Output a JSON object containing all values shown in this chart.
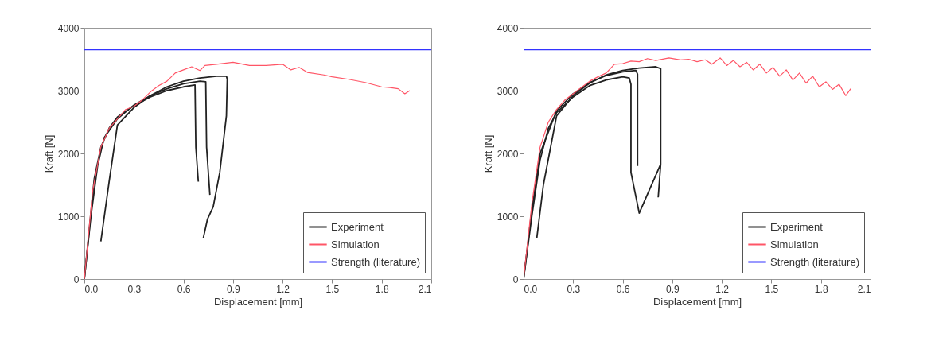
{
  "chart_data": [
    {
      "type": "line",
      "xlabel": "Displacement [mm]",
      "ylabel": "Kraft [N]",
      "xlim": [
        0,
        2.1
      ],
      "xticks": [
        {
          "value": 0,
          "label": "0.0"
        },
        0.3,
        0.6,
        0.9,
        1.2,
        1.5,
        1.8,
        2.1
      ],
      "ylim": [
        0,
        4000
      ],
      "yticks": [
        0,
        1000,
        2000,
        3000,
        4000
      ],
      "legend": "bottom right",
      "ref_lines": [
        {
          "axis": "y",
          "value": 3650,
          "label": "Strength (literature)",
          "color": "#3333ff"
        }
      ],
      "series": [
        {
          "name": "Experiment",
          "color": "#222222",
          "x": [
            0,
            0.03,
            0.06,
            0.1,
            0.15,
            0.2,
            0.3,
            0.4,
            0.5,
            0.6,
            0.67,
            0.675,
            0.69
          ],
          "values": [
            0,
            800,
            1600,
            2100,
            2400,
            2580,
            2760,
            2900,
            3000,
            3060,
            3090,
            2100,
            1550
          ]
        },
        {
          "color": "#222222",
          "x": [
            0,
            0.04,
            0.08,
            0.12,
            0.2,
            0.3,
            0.4,
            0.5,
            0.6,
            0.7,
            0.735,
            0.74,
            0.76
          ],
          "values": [
            0,
            1000,
            1800,
            2250,
            2550,
            2770,
            2920,
            3030,
            3110,
            3150,
            3140,
            2100,
            1340
          ]
        },
        {
          "color": "#222222",
          "x": [
            0.1,
            0.15,
            0.2,
            0.3,
            0.4,
            0.5,
            0.6,
            0.7,
            0.8,
            0.86,
            0.865,
            0.86,
            0.82,
            0.78,
            0.745,
            0.72
          ],
          "values": [
            600,
            1550,
            2450,
            2730,
            2920,
            3060,
            3150,
            3200,
            3230,
            3230,
            3180,
            2600,
            1700,
            1150,
            950,
            650
          ]
        },
        {
          "name": "Simulation",
          "color": "#ff5566",
          "x": [
            0,
            0.05,
            0.1,
            0.15,
            0.2,
            0.25,
            0.3,
            0.35,
            0.4,
            0.45,
            0.5,
            0.55,
            0.6,
            0.65,
            0.7,
            0.73,
            0.8,
            0.9,
            1.0,
            1.1,
            1.2,
            1.25,
            1.3,
            1.35,
            1.45,
            1.5,
            1.6,
            1.7,
            1.8,
            1.85,
            1.9,
            1.94,
            1.97
          ],
          "values": [
            0,
            1400,
            2100,
            2400,
            2550,
            2700,
            2750,
            2850,
            2980,
            3080,
            3150,
            3280,
            3330,
            3380,
            3320,
            3400,
            3420,
            3450,
            3400,
            3400,
            3420,
            3330,
            3370,
            3290,
            3250,
            3220,
            3180,
            3130,
            3060,
            3050,
            3030,
            2950,
            3000
          ]
        }
      ]
    },
    {
      "type": "line",
      "xlabel": "Displacement [mm]",
      "ylabel": "Kraft [N]",
      "xlim": [
        0,
        2.1
      ],
      "xticks": [
        {
          "value": 0,
          "label": "0.0"
        },
        0.3,
        0.6,
        0.9,
        1.2,
        1.5,
        1.8,
        2.1
      ],
      "ylim": [
        0,
        4000
      ],
      "yticks": [
        0,
        1000,
        2000,
        3000,
        4000
      ],
      "legend": "bottom right",
      "ref_lines": [
        {
          "axis": "y",
          "value": 3650,
          "label": "Strength (literature)",
          "color": "#3333ff"
        }
      ],
      "series": [
        {
          "name": "Experiment",
          "color": "#222222",
          "x": [
            0,
            0.05,
            0.1,
            0.15,
            0.2,
            0.3,
            0.4,
            0.5,
            0.6,
            0.64,
            0.65,
            0.65,
            0.7,
            0.83
          ],
          "values": [
            0,
            1000,
            1900,
            2400,
            2650,
            2900,
            3080,
            3170,
            3220,
            3200,
            3100,
            1700,
            1050,
            1830
          ]
        },
        {
          "color": "#222222",
          "x": [
            0,
            0.05,
            0.1,
            0.2,
            0.3,
            0.4,
            0.5,
            0.6,
            0.68,
            0.69,
            0.69
          ],
          "values": [
            0,
            1100,
            2000,
            2680,
            2950,
            3130,
            3240,
            3300,
            3320,
            3260,
            1800
          ]
        },
        {
          "color": "#222222",
          "x": [
            0.08,
            0.12,
            0.2,
            0.3,
            0.4,
            0.5,
            0.6,
            0.7,
            0.8,
            0.83,
            0.83,
            0.815
          ],
          "values": [
            650,
            1500,
            2600,
            2920,
            3120,
            3250,
            3320,
            3360,
            3380,
            3350,
            1830,
            1300
          ]
        },
        {
          "name": "Simulation",
          "color": "#ff5566",
          "x": [
            0,
            0.05,
            0.1,
            0.15,
            0.2,
            0.25,
            0.3,
            0.35,
            0.4,
            0.45,
            0.5,
            0.55,
            0.6,
            0.65,
            0.7,
            0.75,
            0.8,
            0.88,
            0.95,
            1.0,
            1.05,
            1.1,
            1.14,
            1.19,
            1.23,
            1.27,
            1.31,
            1.35,
            1.39,
            1.43,
            1.47,
            1.51,
            1.55,
            1.59,
            1.63,
            1.67,
            1.71,
            1.75,
            1.79,
            1.83,
            1.87,
            1.91,
            1.95,
            1.98
          ],
          "values": [
            0,
            1200,
            2100,
            2500,
            2700,
            2850,
            2950,
            3050,
            3150,
            3220,
            3280,
            3420,
            3430,
            3470,
            3460,
            3510,
            3480,
            3520,
            3490,
            3500,
            3460,
            3490,
            3420,
            3520,
            3400,
            3480,
            3380,
            3450,
            3330,
            3420,
            3280,
            3370,
            3230,
            3330,
            3170,
            3280,
            3120,
            3230,
            3060,
            3140,
            3020,
            3100,
            2920,
            3030
          ]
        }
      ]
    }
  ]
}
